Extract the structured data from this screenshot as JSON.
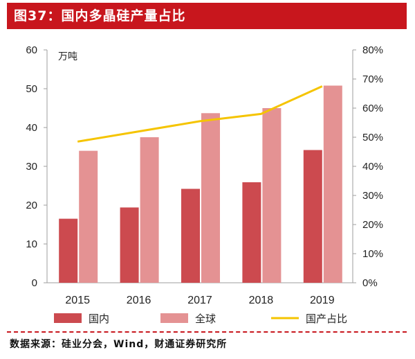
{
  "title": "图37：国内多晶硅产量占比",
  "source": "数据来源：硅业分会，Wind，财通证券研究所",
  "colors": {
    "title_bg": "#c8161d",
    "domestic": "#cc4a4f",
    "global": "#e49293",
    "share_line": "#f5c400",
    "axis": "#9e9e9e"
  },
  "chart_data": {
    "type": "bar",
    "categories": [
      "2015",
      "2016",
      "2017",
      "2018",
      "2019"
    ],
    "ylabel": "万吨",
    "ylim": [
      0,
      60
    ],
    "yticks": [
      "0",
      "10",
      "20",
      "30",
      "40",
      "50",
      "60"
    ],
    "y2lim": [
      0,
      80
    ],
    "y2ticks": [
      "0%",
      "10%",
      "20%",
      "30%",
      "40%",
      "50%",
      "60%",
      "70%",
      "80%"
    ],
    "series": [
      {
        "name": "国内",
        "type": "bar",
        "axis": "left",
        "values": [
          16.5,
          19.4,
          24.2,
          25.9,
          34.2
        ]
      },
      {
        "name": "全球",
        "type": "bar",
        "axis": "right_none",
        "values": [
          34.0,
          37.5,
          43.7,
          45.0,
          50.8
        ]
      },
      {
        "name": "国产占比",
        "type": "line",
        "axis": "right",
        "values": [
          48.5,
          52.0,
          55.5,
          58.0,
          67.5
        ]
      }
    ],
    "legend_position": "bottom"
  }
}
